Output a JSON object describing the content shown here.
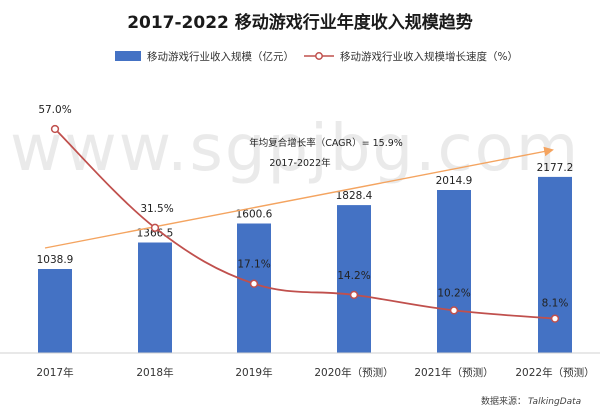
{
  "chart_data": {
    "type": "bar+line",
    "title": "2017-2022 移动游戏行业年度收入规模趋势",
    "categories": [
      "2017年",
      "2018年",
      "2019年",
      "2020年（预测）",
      "2021年（预测）",
      "2022年（预测）"
    ],
    "series": [
      {
        "name": "移动游戏行业收入规模（亿元）",
        "type": "bar",
        "color": "#4472C4",
        "values": [
          1038.9,
          1366.5,
          1600.6,
          1828.4,
          2014.9,
          2177.2
        ],
        "labels": [
          "1038.9",
          "1366.5",
          "1600.6",
          "1828.4",
          "2014.9",
          "2177.2"
        ]
      },
      {
        "name": "移动游戏行业收入规模增长速度（%）",
        "type": "line",
        "color": "#C0504D",
        "values": [
          57.0,
          31.5,
          17.1,
          14.2,
          10.2,
          8.1
        ],
        "labels": [
          "57.0%",
          "31.5%",
          "17.1%",
          "14.2%",
          "10.2%",
          "8.1%"
        ]
      }
    ],
    "annotation": {
      "line1": "年均复合增长率（CAGR）= 15.9%",
      "line2": "2017-2022年",
      "arrow_color": "#F4A460"
    },
    "source_label": "数据来源：",
    "source_brand": "TalkingData",
    "watermark": "www.sgpjbg.com"
  }
}
